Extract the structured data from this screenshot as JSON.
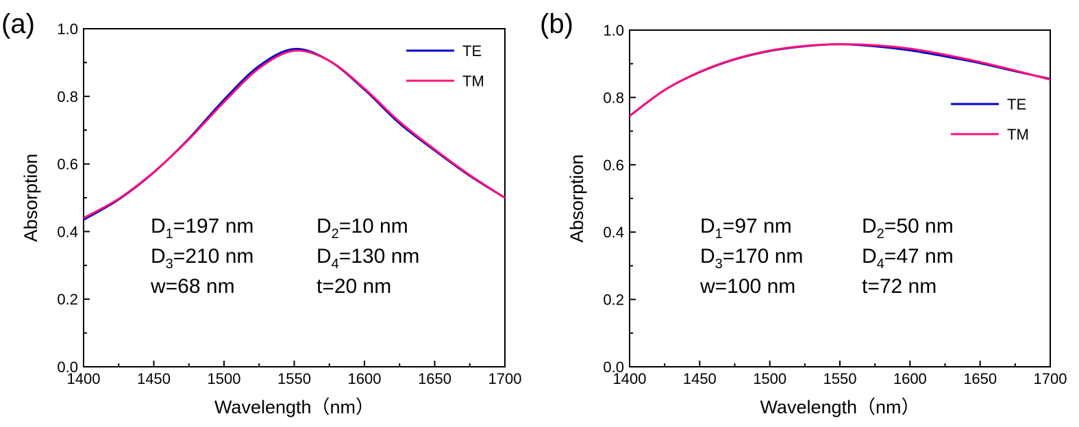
{
  "chart_data": [
    {
      "type": "line",
      "panel_label": "(a)",
      "xlabel": "Wavelength（nm）",
      "ylabel": "Absorption",
      "xlim": [
        1400,
        1700
      ],
      "ylim": [
        0.0,
        1.0
      ],
      "x_ticks": [
        "1400",
        "1450",
        "1500",
        "1550",
        "1600",
        "1650",
        "1700"
      ],
      "y_ticks": [
        "0.0",
        "0.2",
        "0.4",
        "0.6",
        "0.8",
        "1.0"
      ],
      "legend_position": "top-right",
      "series": [
        {
          "name": "TE",
          "color": "#0000cc",
          "x": [
            1400,
            1425,
            1450,
            1475,
            1500,
            1525,
            1550,
            1575,
            1600,
            1625,
            1650,
            1675,
            1700
          ],
          "values": [
            0.435,
            0.495,
            0.575,
            0.675,
            0.79,
            0.89,
            0.94,
            0.905,
            0.82,
            0.72,
            0.64,
            0.565,
            0.5
          ]
        },
        {
          "name": "TM",
          "color": "#ff1177",
          "x": [
            1400,
            1425,
            1450,
            1475,
            1500,
            1525,
            1550,
            1575,
            1600,
            1625,
            1650,
            1675,
            1700
          ],
          "values": [
            0.44,
            0.497,
            0.576,
            0.673,
            0.783,
            0.883,
            0.935,
            0.905,
            0.823,
            0.725,
            0.643,
            0.567,
            0.5
          ]
        }
      ],
      "annotations": [
        [
          {
            "base": "D",
            "sub": "1",
            "rest": "=197 nm"
          },
          {
            "base": "D",
            "sub": "2",
            "rest": "=10 nm"
          }
        ],
        [
          {
            "base": "D",
            "sub": "3",
            "rest": "=210 nm"
          },
          {
            "base": "D",
            "sub": "4",
            "rest": "=130 nm"
          }
        ],
        [
          {
            "base": "w=68 nm",
            "sub": "",
            "rest": ""
          },
          {
            "base": "t=20 nm",
            "sub": "",
            "rest": ""
          }
        ]
      ]
    },
    {
      "type": "line",
      "panel_label": "(b)",
      "xlabel": "Wavelength（nm）",
      "ylabel": "Absorption",
      "xlim": [
        1400,
        1700
      ],
      "ylim": [
        0.0,
        1.0
      ],
      "x_ticks": [
        "1400",
        "1450",
        "1500",
        "1550",
        "1600",
        "1650",
        "1700"
      ],
      "y_ticks": [
        "0.0",
        "0.2",
        "0.4",
        "0.6",
        "0.8",
        "1.0"
      ],
      "legend_position": "top-right",
      "series": [
        {
          "name": "TE",
          "color": "#0000cc",
          "x": [
            1400,
            1425,
            1450,
            1475,
            1500,
            1525,
            1550,
            1575,
            1600,
            1625,
            1650,
            1675,
            1700
          ],
          "values": [
            0.745,
            0.822,
            0.875,
            0.913,
            0.938,
            0.952,
            0.958,
            0.952,
            0.94,
            0.922,
            0.902,
            0.878,
            0.855
          ]
        },
        {
          "name": "TM",
          "color": "#ff1177",
          "x": [
            1400,
            1425,
            1450,
            1475,
            1500,
            1525,
            1550,
            1575,
            1600,
            1625,
            1650,
            1675,
            1700
          ],
          "values": [
            0.745,
            0.822,
            0.876,
            0.914,
            0.939,
            0.953,
            0.958,
            0.955,
            0.945,
            0.927,
            0.905,
            0.88,
            0.853
          ]
        }
      ],
      "annotations": [
        [
          {
            "base": "D",
            "sub": "1",
            "rest": "=97 nm"
          },
          {
            "base": "D",
            "sub": "2",
            "rest": "=50 nm"
          }
        ],
        [
          {
            "base": "D",
            "sub": "3",
            "rest": "=170 nm"
          },
          {
            "base": "D",
            "sub": "4",
            "rest": "=47 nm"
          }
        ],
        [
          {
            "base": "w=100 nm",
            "sub": "",
            "rest": ""
          },
          {
            "base": "t=72 nm",
            "sub": "",
            "rest": ""
          }
        ]
      ]
    }
  ]
}
